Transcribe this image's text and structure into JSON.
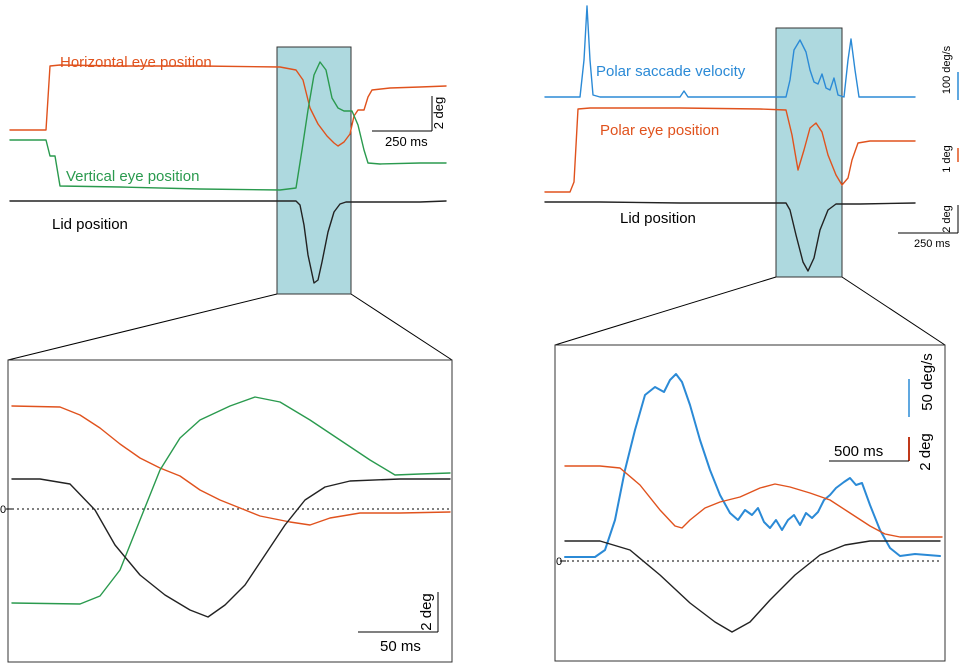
{
  "colors": {
    "horizontal": "#e0521d",
    "vertical": "#2a9a4e",
    "lid": "#222222",
    "velocity": "#2b8ad6",
    "polar": "#e0521d",
    "highlight": "#aed9df"
  },
  "left_panel": {
    "labels": {
      "horizontal": "Horizontal eye position",
      "vertical": "Vertical eye position",
      "lid": "Lid position"
    },
    "scale": {
      "amplitude": "2 deg",
      "time": "250 ms"
    }
  },
  "right_panel": {
    "labels": {
      "velocity": "Polar saccade velocity",
      "polar": "Polar eye position",
      "lid": "Lid position"
    },
    "scale": {
      "velocity": "100 deg/s",
      "position": "1 deg",
      "lid": "2 deg",
      "time": "250 ms"
    }
  },
  "left_zoom": {
    "scale": {
      "amplitude": "2 deg",
      "time": "50 ms"
    },
    "zero_label": "0"
  },
  "right_zoom": {
    "scale": {
      "velocity": "50 deg/s",
      "amplitude": "2 deg",
      "time": "500 ms"
    },
    "zero_label": "0"
  },
  "chart_data": [
    {
      "type": "line",
      "panel": "top-left",
      "series": [
        {
          "name": "Horizontal eye position",
          "y": [
            0,
            0,
            4.4,
            4.4,
            4.4,
            4.3,
            1.3,
            0.8,
            2.6,
            3.5,
            3.4
          ]
        },
        {
          "name": "Vertical eye position",
          "y": [
            0,
            0,
            -3.1,
            -3.1,
            -3.0,
            3.6,
            8.8,
            8.0,
            2.1,
            -1.6,
            -1.5
          ]
        },
        {
          "name": "Lid position",
          "y": [
            0,
            0,
            0,
            0,
            0,
            0,
            -2.4,
            -5.8,
            -2.1,
            0,
            0
          ]
        }
      ]
    },
    {
      "type": "line",
      "panel": "top-right",
      "series": [
        {
          "name": "Polar saccade velocity",
          "y": [
            0,
            0,
            505,
            0,
            0,
            0,
            235,
            290,
            170,
            0,
            300,
            0,
            0
          ]
        },
        {
          "name": "Polar eye position",
          "y": [
            0,
            0,
            4.5,
            4.4,
            4.4,
            4.3,
            1.0,
            3.0,
            0.6,
            1.5,
            2.7,
            2.7,
            2.7
          ]
        },
        {
          "name": "Lid position",
          "y": [
            0,
            0,
            0,
            0,
            0,
            0,
            -1.8,
            -3.4,
            -2.0,
            0,
            0,
            0,
            0
          ]
        }
      ]
    },
    {
      "type": "line",
      "panel": "bottom-left",
      "series": [
        {
          "y": [
            2.0,
            2.0,
            1.5,
            0.9,
            0.5,
            0.1,
            -0.2,
            -0.3,
            -0.2
          ]
        },
        {
          "y": [
            -1.9,
            -1.9,
            -1.8,
            -1.0,
            1.1,
            2.1,
            2.6,
            2.6,
            2.0,
            0.7,
            0.7
          ]
        },
        {
          "y": [
            0.6,
            0.6,
            0.2,
            -1.0,
            -2.5,
            -3.1,
            -2.4,
            -1.0,
            0.4,
            0.6,
            0.6
          ]
        }
      ]
    },
    {
      "type": "line",
      "panel": "bottom-right",
      "series": [
        {
          "y": [
            0,
            1,
            145,
            170,
            100,
            60,
            40,
            50,
            60,
            95,
            10,
            1
          ]
        },
        {
          "y": [
            4.4,
            4.4,
            4.3,
            1.2,
            2.5,
            3.3,
            3.0,
            0.9,
            0.9
          ]
        },
        {
          "y": [
            0.5,
            0.5,
            0.3,
            -0.8,
            -1.9,
            -2.1,
            -1.0,
            0.4,
            0.5,
            0.5
          ]
        }
      ]
    }
  ]
}
